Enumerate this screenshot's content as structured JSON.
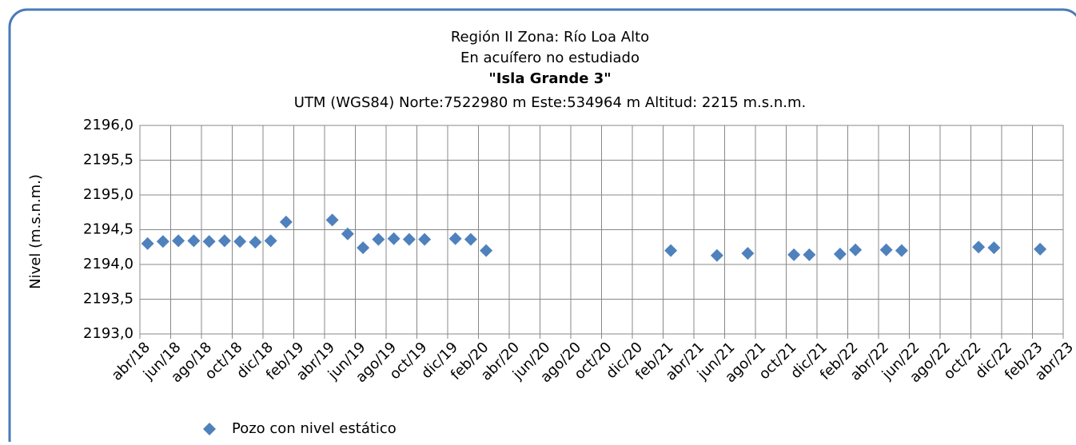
{
  "chart_data": {
    "type": "scatter",
    "title_lines": [
      "Región II  Zona: Río Loa Alto",
      "En acuífero no estudiado",
      "\"Isla Grande 3\"",
      "UTM (WGS84) Norte:7522980 m   Este:534964 m Altitud: 2215 m.s.n.m."
    ],
    "y_label": "Nivel (m.s.n.m.)",
    "xlim": [
      "2018-04",
      "2023-04"
    ],
    "xticks": [
      {
        "value": "2018-04",
        "label": "abr/18"
      },
      {
        "value": "2018-06",
        "label": "jun/18"
      },
      {
        "value": "2018-08",
        "label": "ago/18"
      },
      {
        "value": "2018-10",
        "label": "oct/18"
      },
      {
        "value": "2018-12",
        "label": "dic/18"
      },
      {
        "value": "2019-02",
        "label": "feb/19"
      },
      {
        "value": "2019-04",
        "label": "abr/19"
      },
      {
        "value": "2019-06",
        "label": "jun/19"
      },
      {
        "value": "2019-08",
        "label": "ago/19"
      },
      {
        "value": "2019-10",
        "label": "oct/19"
      },
      {
        "value": "2019-12",
        "label": "dic/19"
      },
      {
        "value": "2020-02",
        "label": "feb/20"
      },
      {
        "value": "2020-04",
        "label": "abr/20"
      },
      {
        "value": "2020-06",
        "label": "jun/20"
      },
      {
        "value": "2020-08",
        "label": "ago/20"
      },
      {
        "value": "2020-10",
        "label": "oct/20"
      },
      {
        "value": "2020-12",
        "label": "dic/20"
      },
      {
        "value": "2021-02",
        "label": "feb/21"
      },
      {
        "value": "2021-04",
        "label": "abr/21"
      },
      {
        "value": "2021-06",
        "label": "jun/21"
      },
      {
        "value": "2021-08",
        "label": "ago/21"
      },
      {
        "value": "2021-10",
        "label": "oct/21"
      },
      {
        "value": "2021-12",
        "label": "dic/21"
      },
      {
        "value": "2022-02",
        "label": "feb/22"
      },
      {
        "value": "2022-04",
        "label": "abr/22"
      },
      {
        "value": "2022-06",
        "label": "jun/22"
      },
      {
        "value": "2022-08",
        "label": "ago/22"
      },
      {
        "value": "2022-10",
        "label": "oct/22"
      },
      {
        "value": "2022-12",
        "label": "dic/22"
      },
      {
        "value": "2023-02",
        "label": "feb/23"
      },
      {
        "value": "2023-04",
        "label": "abr/23"
      }
    ],
    "ylim": [
      2193,
      2196
    ],
    "yticks": [
      {
        "value": 2193,
        "label": "2193,0"
      },
      {
        "value": 2193.5,
        "label": "2193,5"
      },
      {
        "value": 2194,
        "label": "2194,0"
      },
      {
        "value": 2194.5,
        "label": "2194,5"
      },
      {
        "value": 2195,
        "label": "2195,0"
      },
      {
        "value": 2195.5,
        "label": "2195,5"
      },
      {
        "value": 2196,
        "label": "2196,0"
      }
    ],
    "grid": true,
    "legend": "bottom",
    "series": [
      {
        "name": "Pozo con nivel estático",
        "color": "#4f81bd",
        "x": [
          "2018-04",
          "2018-05",
          "2018-06",
          "2018-07",
          "2018-08",
          "2018-09",
          "2018-10",
          "2018-11",
          "2018-12",
          "2019-01",
          "2019-04",
          "2019-05",
          "2019-06",
          "2019-07",
          "2019-08",
          "2019-09",
          "2019-10",
          "2019-12",
          "2020-01",
          "2020-02",
          "2021-02",
          "2021-05",
          "2021-07",
          "2021-10",
          "2021-11",
          "2022-01",
          "2022-02",
          "2022-04",
          "2022-05",
          "2022-10",
          "2022-11",
          "2023-02"
        ],
        "values": [
          2194.3,
          2194.33,
          2194.34,
          2194.34,
          2194.33,
          2194.34,
          2194.33,
          2194.32,
          2194.34,
          2194.61,
          2194.64,
          2194.44,
          2194.24,
          2194.36,
          2194.37,
          2194.36,
          2194.36,
          2194.37,
          2194.36,
          2194.2,
          2194.2,
          2194.13,
          2194.16,
          2194.14,
          2194.14,
          2194.15,
          2194.21,
          2194.21,
          2194.2,
          2194.25,
          2194.24,
          2194.22
        ]
      }
    ]
  }
}
